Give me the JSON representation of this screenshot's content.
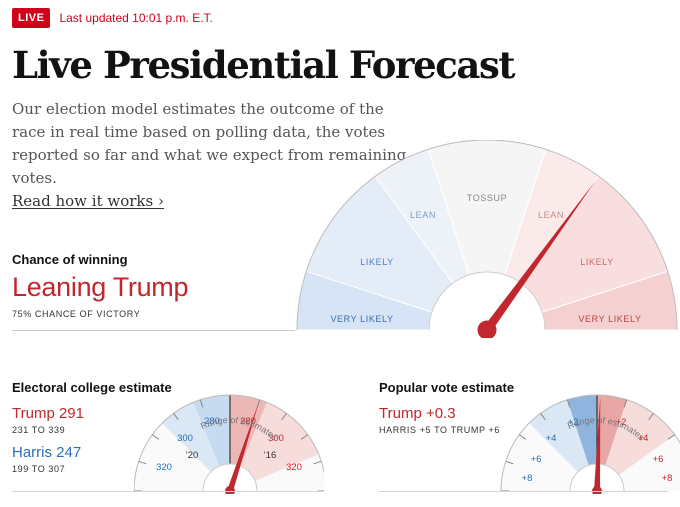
{
  "header": {
    "live_badge": "LIVE",
    "updated": "Last updated 10:01 p.m. E.T."
  },
  "title": "Live Presidential Forecast",
  "intro": {
    "text": "Our election model estimates the outcome of the race in real time based on polling data, the votes reported so far and what we expect from remaining votes.",
    "link": "Read how it works ›"
  },
  "chance": {
    "heading": "Chance of winning",
    "value": "Leaning Trump",
    "subtext": "75% CHANCE OF VICTORY",
    "probability_trump": 0.75
  },
  "main_gauge": {
    "labels": {
      "very_likely_left": "VERY LIKELY",
      "likely_left": "LIKELY",
      "lean_left": "LEAN",
      "tossup": "TOSSUP",
      "lean_right": "LEAN",
      "likely_right": "LIKELY",
      "very_likely_right": "VERY LIKELY"
    }
  },
  "electoral": {
    "heading": "Electoral college estimate",
    "trump": "Trump 291",
    "trump_range": "231 TO 339",
    "harris": "Harris 247",
    "harris_range": "199 TO 307",
    "gauge": {
      "range_label": "Range of estimates",
      "ticks": {
        "b280": "280",
        "b300": "300",
        "b320": "320",
        "r280": "280",
        "r300": "300",
        "r320": "320",
        "y20": "’20",
        "y16": "’16"
      }
    }
  },
  "popular": {
    "heading": "Popular vote estimate",
    "trump": "Trump +0.3",
    "range": "HARRIS +5 TO TRUMP +6",
    "gauge": {
      "range_label": "Range of estimates",
      "ticks": {
        "b2": "+2",
        "b4": "+4",
        "b6": "+6",
        "b8": "+8",
        "r2": "+2",
        "r4": "+4",
        "r6": "+6",
        "r8": "+8"
      }
    }
  },
  "colors": {
    "accent_red": "#d0021b",
    "trump_red": "#c2272d",
    "harris_blue": "#2a6fb5"
  }
}
